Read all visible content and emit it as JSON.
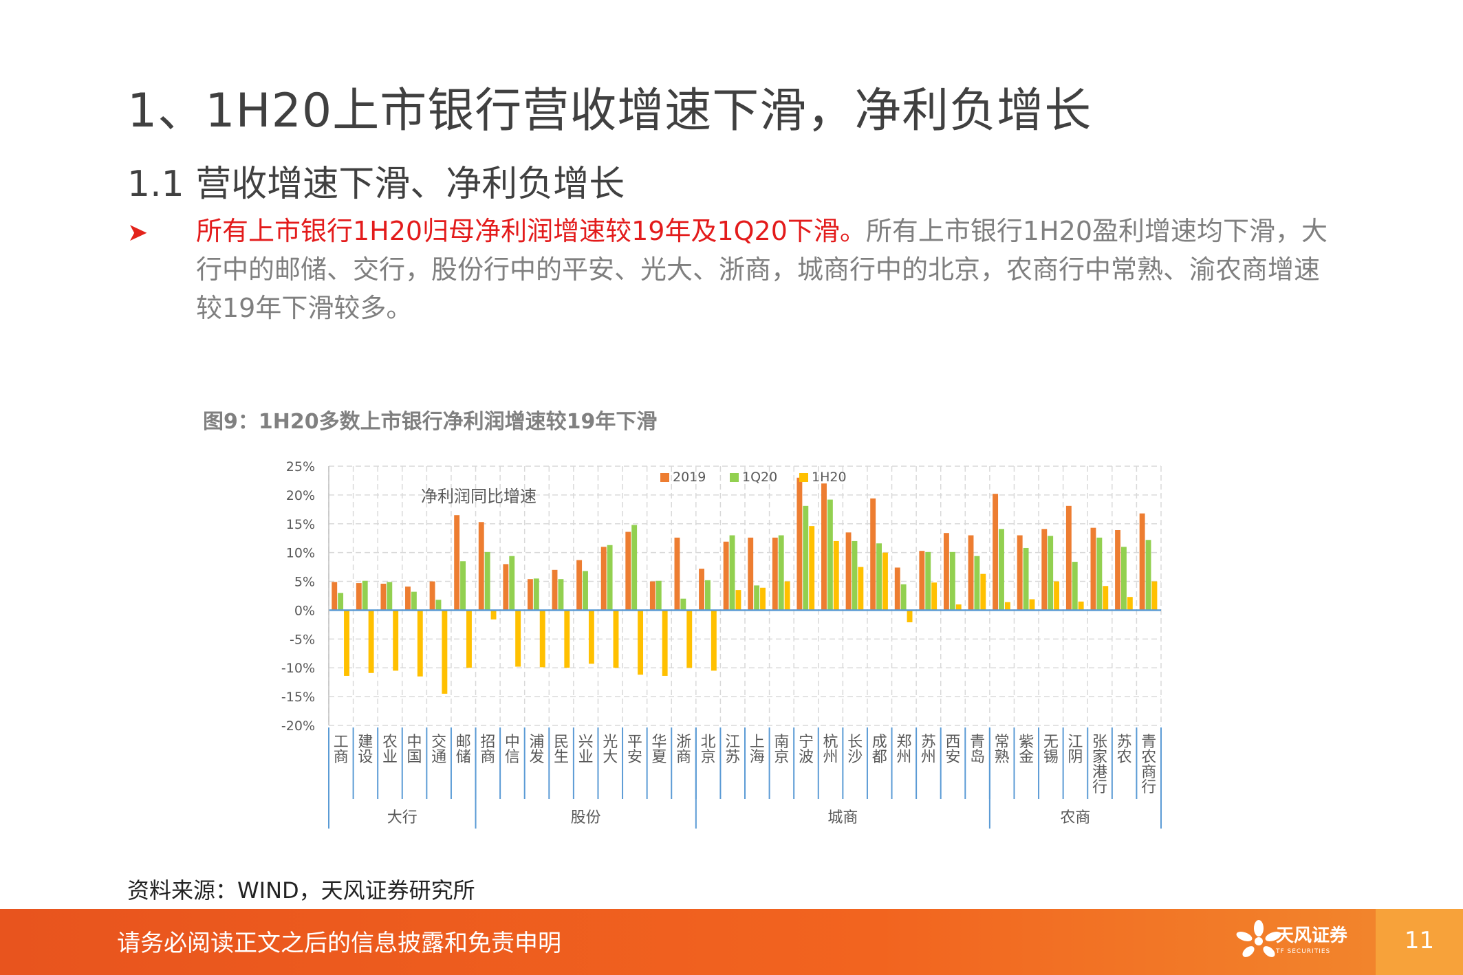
{
  "title": "1、1H20上市银行营收增速下滑，净利负增长",
  "subtitle": "1.1 营收增速下滑、净利负增长",
  "bullet": {
    "highlight": "所有上市银行1H20归母净利润增速较19年及1Q20下滑。",
    "text": "所有上市银行1H20盈利增速均下滑，大行中的邮储、交行，股份行中的平安、光大、浙商，城商行中的北京，农商行中常熟、渝农商增速较19年下滑较多。"
  },
  "figure_title": "图9：1H20多数上市银行净利润增速较19年下滑",
  "source": "资料来源：WIND，天风证券研究所",
  "footer": {
    "disclaimer": "请务必阅读正文之后的信息披露和免责申明",
    "brand_cn": "天风证券",
    "brand_en": "TF SECURITIES",
    "page": "11"
  },
  "colors": {
    "s2019": "#ed7d31",
    "s1q20": "#92d050",
    "s1h20": "#ffc000",
    "axis": "#5b9bd5",
    "footer": "#f0601e"
  },
  "chart_data": {
    "type": "bar",
    "annotation": "净利润同比增速",
    "categories": [
      "工商",
      "建设",
      "农业",
      "中国",
      "交通",
      "邮储",
      "招商",
      "中信",
      "浦发",
      "民生",
      "兴业",
      "光大",
      "平安",
      "华夏",
      "浙商",
      "北京",
      "江苏",
      "上海",
      "南京",
      "宁波",
      "杭州",
      "长沙",
      "成都",
      "郑州",
      "苏州",
      "西安",
      "青岛",
      "常熟",
      "紫金",
      "无锡",
      "江阴",
      "张家港行",
      "苏农",
      "青农商行"
    ],
    "groups": [
      {
        "label": "大行",
        "count": 6
      },
      {
        "label": "股份",
        "count": 9
      },
      {
        "label": "城商",
        "count": 12
      },
      {
        "label": "农商",
        "count": 7
      }
    ],
    "series": [
      {
        "name": "2019",
        "values": [
          4.9,
          4.7,
          4.6,
          4.1,
          5.0,
          16.5,
          15.3,
          8.0,
          5.4,
          7.0,
          8.7,
          11.0,
          13.6,
          5.0,
          12.6,
          7.2,
          11.9,
          12.6,
          12.6,
          23.0,
          22.0,
          13.5,
          19.4,
          7.4,
          10.3,
          13.4,
          13.0,
          20.2,
          13.0,
          14.1,
          18.1,
          14.3,
          13.9,
          16.8
        ]
      },
      {
        "name": "1Q20",
        "values": [
          3.0,
          5.1,
          4.9,
          3.2,
          1.8,
          8.5,
          10.1,
          9.4,
          5.5,
          5.4,
          6.8,
          11.3,
          14.8,
          5.1,
          2.0,
          5.2,
          13.0,
          4.3,
          13.0,
          18.1,
          19.2,
          12.0,
          11.6,
          4.5,
          10.1,
          10.1,
          9.4,
          14.1,
          10.8,
          12.9,
          8.4,
          12.6,
          11.0,
          12.2
        ]
      },
      {
        "name": "1H20",
        "values": [
          -11.4,
          -10.9,
          -10.5,
          -11.5,
          -14.5,
          -10.0,
          -1.6,
          -9.8,
          -9.9,
          -10.0,
          -9.3,
          -10.0,
          -11.2,
          -11.4,
          -10.0,
          -10.5,
          3.5,
          3.9,
          5.0,
          14.6,
          12.0,
          7.5,
          10.0,
          -2.1,
          4.8,
          1.0,
          6.3,
          1.4,
          1.9,
          5.0,
          1.5,
          4.2,
          2.3,
          5.0
        ]
      }
    ],
    "y_ticks": [
      "25%",
      "20%",
      "15%",
      "10%",
      "5%",
      "0%",
      "-5%",
      "-10%",
      "-15%",
      "-20%"
    ],
    "ylim": [
      -20,
      25
    ],
    "legend": "top-center",
    "grid": true
  }
}
